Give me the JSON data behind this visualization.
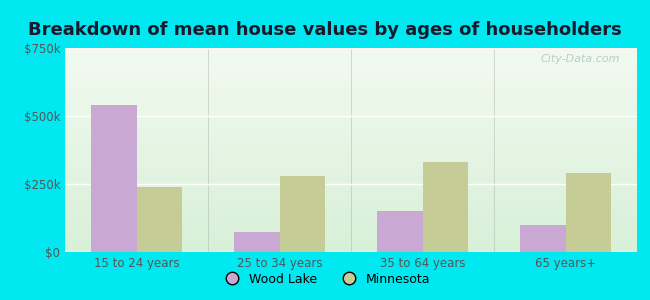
{
  "title": "Breakdown of mean house values by ages of householders",
  "categories": [
    "15 to 24 years",
    "25 to 34 years",
    "35 to 64 years",
    "65 years+"
  ],
  "wood_lake_values": [
    540000,
    75000,
    150000,
    100000
  ],
  "minnesota_values": [
    240000,
    280000,
    330000,
    290000
  ],
  "wood_lake_color": "#c9a8d4",
  "minnesota_color": "#c5cc96",
  "ylim": [
    0,
    750000
  ],
  "yticks": [
    0,
    250000,
    500000,
    750000
  ],
  "ytick_labels": [
    "$0",
    "$250k",
    "$500k",
    "$750k"
  ],
  "outer_color": "#00e8f0",
  "bar_width": 0.32,
  "title_fontsize": 13,
  "legend_labels": [
    "Wood Lake",
    "Minnesota"
  ],
  "watermark": "City-Data.com",
  "bg_top_color": "#f2faf0",
  "bg_bottom_color": "#d8f0d8"
}
